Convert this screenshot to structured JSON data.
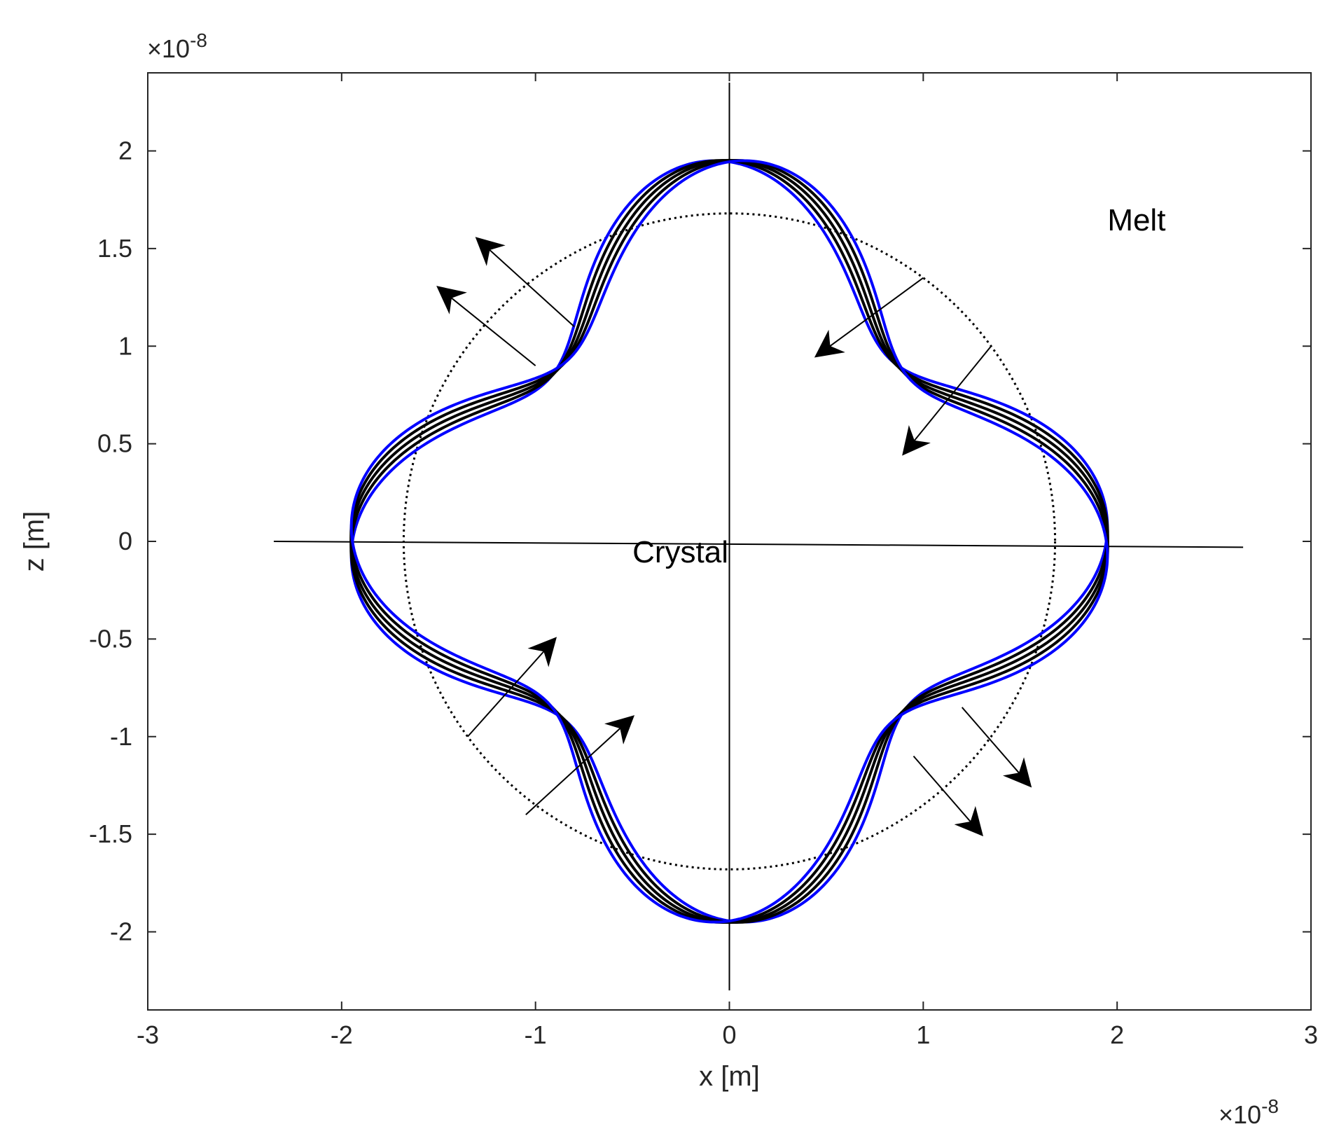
{
  "chart_data": {
    "type": "line",
    "xlabel": "x  [m]",
    "ylabel": "z  [m]",
    "x_exponent_label": "×10",
    "x_exponent_power": "-8",
    "y_exponent_label": "×10",
    "y_exponent_power": "-8",
    "xlim": [
      -3,
      3
    ],
    "ylim": [
      -2.4,
      2.4
    ],
    "x_ticks": [
      -3,
      -2,
      -1,
      0,
      1,
      2,
      3
    ],
    "x_tick_labels": [
      "-3",
      "-2",
      "-1",
      "0",
      "1",
      "2",
      "3"
    ],
    "y_ticks": [
      -2,
      -1.5,
      -1,
      -0.5,
      0,
      0.5,
      1,
      1.5,
      2
    ],
    "y_tick_labels": [
      "-2",
      "-1.5",
      "-1",
      "-0.5",
      "0",
      "0.5",
      "1",
      "1.5",
      "2"
    ],
    "grid": false,
    "annotations": [
      {
        "text": "Melt",
        "x": 1.95,
        "y": 1.65
      },
      {
        "text": "Crystal",
        "x": -0.5,
        "y": -0.05
      }
    ],
    "reference_circle": {
      "radius": 1.68,
      "style": "dotted",
      "color": "#000000"
    },
    "shapes": {
      "description_formula": "r(theta) = r0 * (1 + eps*cos(4*(theta - phi)))",
      "r0": 1.6,
      "eps": 0.22,
      "curves": [
        {
          "color": "#0000ff",
          "phi_deg": 3.0
        },
        {
          "color": "#000000",
          "phi_deg": 1.5
        },
        {
          "color": "#000000",
          "phi_deg": 0.0
        },
        {
          "color": "#000000",
          "phi_deg": -1.5
        },
        {
          "color": "#0000ff",
          "phi_deg": -3.0
        }
      ]
    },
    "reference_lines": [
      {
        "x1": -2.35,
        "y1": 0.0,
        "x2": 2.65,
        "y2": -0.03
      },
      {
        "x1": 0.0,
        "y1": 2.35,
        "x2": 0.0,
        "y2": -2.3
      }
    ],
    "arrows": [
      {
        "x1": -1.0,
        "y1": 0.9,
        "x2": -1.5,
        "y2": 1.3
      },
      {
        "x1": -0.8,
        "y1": 1.1,
        "x2": -1.3,
        "y2": 1.55
      },
      {
        "x1": 1.0,
        "y1": 1.35,
        "x2": 0.45,
        "y2": 0.95
      },
      {
        "x1": 1.35,
        "y1": 1.0,
        "x2": 0.9,
        "y2": 0.45
      },
      {
        "x1": -1.35,
        "y1": -1.0,
        "x2": -0.9,
        "y2": -0.5
      },
      {
        "x1": -1.05,
        "y1": -1.4,
        "x2": -0.5,
        "y2": -0.9
      },
      {
        "x1": 1.2,
        "y1": -0.85,
        "x2": 1.55,
        "y2": -1.25
      },
      {
        "x1": 0.95,
        "y1": -1.1,
        "x2": 1.3,
        "y2": -1.5
      }
    ],
    "colors": {
      "primary": "#0000ff",
      "secondary": "#000000",
      "axis": "#262626"
    }
  }
}
